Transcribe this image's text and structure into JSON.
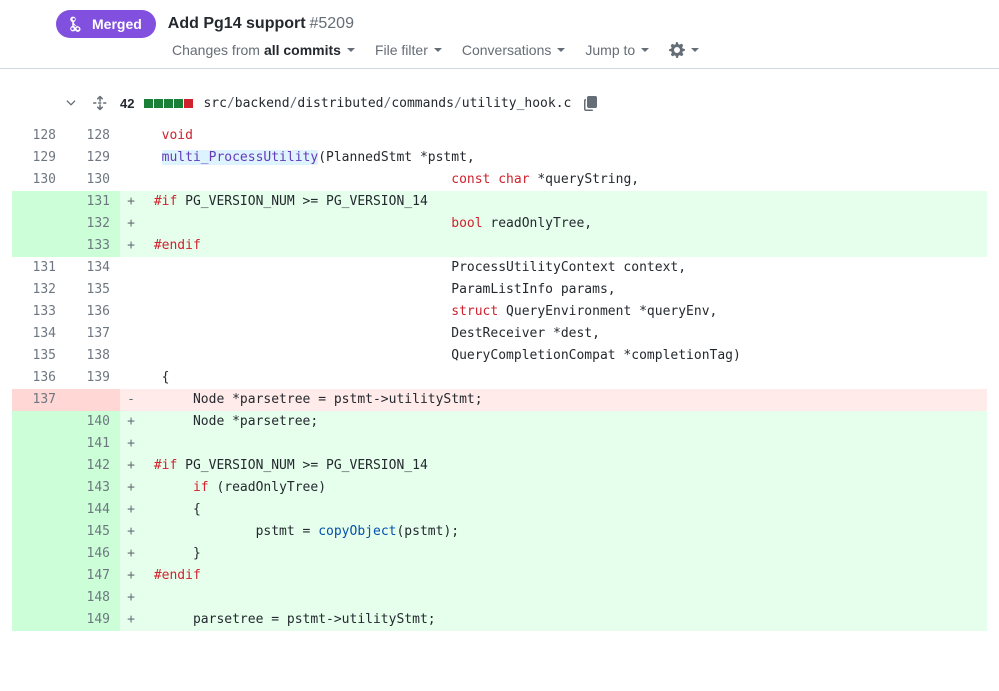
{
  "header": {
    "merged_label": "Merged",
    "title": "Add Pg14 support",
    "number": "#5209"
  },
  "toolbar": {
    "changes_prefix": "Changes from",
    "changes_strong": "all commits",
    "file_filter": "File filter",
    "conversations": "Conversations",
    "jump_to": "Jump to"
  },
  "file": {
    "diff_count": "42",
    "diffstat": [
      "add",
      "add",
      "add",
      "add",
      "del"
    ],
    "path_segments": [
      "src",
      "backend",
      "distributed",
      "commands",
      "utility_hook.c"
    ]
  },
  "colors": {
    "add_bg": "#e6ffec",
    "add_num_bg": "#ccffd8",
    "del_bg": "#ffebe9",
    "del_num_bg": "#ffd7d5",
    "merged_badge": "#8250df",
    "kw": "#cf222e",
    "fn": "#6639ba",
    "call": "#0550ae",
    "hl": "#ddf4ff"
  },
  "diff": [
    {
      "t": "ctx",
      "l": "128",
      "r": "128",
      "m": " ",
      "tok": [
        [
          "pad",
          "  "
        ],
        [
          "kw",
          "void"
        ]
      ]
    },
    {
      "t": "ctx",
      "l": "129",
      "r": "129",
      "m": " ",
      "tok": [
        [
          "pad",
          "  "
        ],
        [
          "hlfn",
          "multi_ProcessUtility"
        ],
        [
          "txt",
          "(PlannedStmt *pstmt,"
        ]
      ]
    },
    {
      "t": "ctx",
      "l": "130",
      "r": "130",
      "m": " ",
      "tok": [
        [
          "pad",
          "                                       "
        ],
        [
          "kw",
          "const"
        ],
        [
          "txt",
          " "
        ],
        [
          "kw",
          "char"
        ],
        [
          "txt",
          " *queryString,"
        ]
      ]
    },
    {
      "t": "add",
      "l": "",
      "r": "131",
      "m": "+",
      "tok": [
        [
          "pad",
          " "
        ],
        [
          "pp",
          "#if"
        ],
        [
          "txt",
          " PG_VERSION_NUM >= PG_VERSION_14"
        ]
      ]
    },
    {
      "t": "add",
      "l": "",
      "r": "132",
      "m": "+",
      "tok": [
        [
          "pad",
          "                                       "
        ],
        [
          "kw",
          "bool"
        ],
        [
          "txt",
          " readOnlyTree,"
        ]
      ]
    },
    {
      "t": "add",
      "l": "",
      "r": "133",
      "m": "+",
      "tok": [
        [
          "pad",
          " "
        ],
        [
          "pp",
          "#endif"
        ]
      ]
    },
    {
      "t": "ctx",
      "l": "131",
      "r": "134",
      "m": " ",
      "tok": [
        [
          "pad",
          "                                       "
        ],
        [
          "txt",
          "ProcessUtilityContext context,"
        ]
      ]
    },
    {
      "t": "ctx",
      "l": "132",
      "r": "135",
      "m": " ",
      "tok": [
        [
          "pad",
          "                                       "
        ],
        [
          "txt",
          "ParamListInfo params,"
        ]
      ]
    },
    {
      "t": "ctx",
      "l": "133",
      "r": "136",
      "m": " ",
      "tok": [
        [
          "pad",
          "                                       "
        ],
        [
          "kw",
          "struct"
        ],
        [
          "txt",
          " QueryEnvironment *queryEnv,"
        ]
      ]
    },
    {
      "t": "ctx",
      "l": "134",
      "r": "137",
      "m": " ",
      "tok": [
        [
          "pad",
          "                                       "
        ],
        [
          "txt",
          "DestReceiver *dest,"
        ]
      ]
    },
    {
      "t": "ctx",
      "l": "135",
      "r": "138",
      "m": " ",
      "tok": [
        [
          "pad",
          "                                       "
        ],
        [
          "txt",
          "QueryCompletionCompat *completionTag)"
        ]
      ]
    },
    {
      "t": "ctx",
      "l": "136",
      "r": "139",
      "m": " ",
      "tok": [
        [
          "pad",
          "  "
        ],
        [
          "txt",
          "{"
        ]
      ]
    },
    {
      "t": "del",
      "l": "137",
      "r": "",
      "m": "-",
      "tok": [
        [
          "pad",
          "      "
        ],
        [
          "txt",
          "Node *parsetree = pstmt->utilityStmt;"
        ]
      ]
    },
    {
      "t": "add",
      "l": "",
      "r": "140",
      "m": "+",
      "tok": [
        [
          "pad",
          "      "
        ],
        [
          "txt",
          "Node *parsetree;"
        ]
      ]
    },
    {
      "t": "add",
      "l": "",
      "r": "141",
      "m": "+",
      "tok": []
    },
    {
      "t": "add",
      "l": "",
      "r": "142",
      "m": "+",
      "tok": [
        [
          "pad",
          " "
        ],
        [
          "pp",
          "#if"
        ],
        [
          "txt",
          " PG_VERSION_NUM >= PG_VERSION_14"
        ]
      ]
    },
    {
      "t": "add",
      "l": "",
      "r": "143",
      "m": "+",
      "tok": [
        [
          "pad",
          "      "
        ],
        [
          "kw",
          "if"
        ],
        [
          "txt",
          " (readOnlyTree)"
        ]
      ]
    },
    {
      "t": "add",
      "l": "",
      "r": "144",
      "m": "+",
      "tok": [
        [
          "pad",
          "      "
        ],
        [
          "txt",
          "{"
        ]
      ]
    },
    {
      "t": "add",
      "l": "",
      "r": "145",
      "m": "+",
      "tok": [
        [
          "pad",
          "              "
        ],
        [
          "txt",
          "pstmt = "
        ],
        [
          "call",
          "copyObject"
        ],
        [
          "txt",
          "(pstmt);"
        ]
      ]
    },
    {
      "t": "add",
      "l": "",
      "r": "146",
      "m": "+",
      "tok": [
        [
          "pad",
          "      "
        ],
        [
          "txt",
          "}"
        ]
      ]
    },
    {
      "t": "add",
      "l": "",
      "r": "147",
      "m": "+",
      "tok": [
        [
          "pad",
          " "
        ],
        [
          "pp",
          "#endif"
        ]
      ]
    },
    {
      "t": "add",
      "l": "",
      "r": "148",
      "m": "+",
      "tok": []
    },
    {
      "t": "add",
      "l": "",
      "r": "149",
      "m": "+",
      "tok": [
        [
          "pad",
          "      "
        ],
        [
          "txt",
          "parsetree = pstmt->utilityStmt;"
        ]
      ]
    }
  ]
}
